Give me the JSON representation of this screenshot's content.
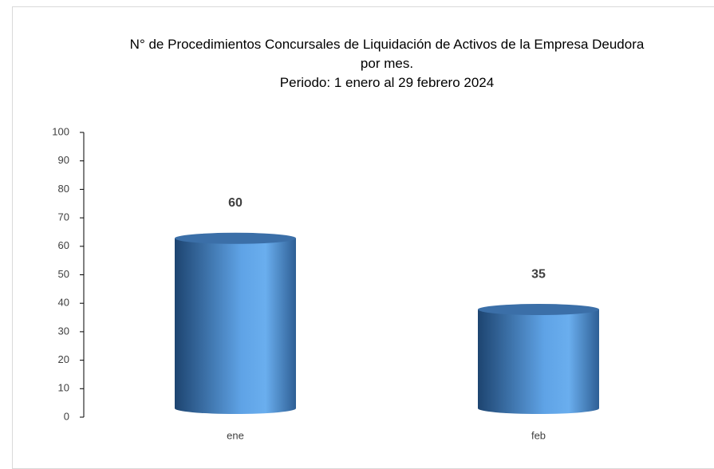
{
  "chart_data": {
    "type": "bar",
    "title": "N° de Procedimientos Concursales de Liquidación de Activos de la Empresa Deudora por mes.",
    "subtitle": "Periodo: 1 enero al 29 febrero 2024",
    "categories": [
      "ene",
      "feb"
    ],
    "values": [
      60,
      35
    ],
    "color": "#4a8fd6",
    "ylim": [
      0,
      100
    ],
    "yticks": [
      0,
      10,
      20,
      30,
      40,
      50,
      60,
      70,
      80,
      90,
      100
    ],
    "grid": false
  }
}
